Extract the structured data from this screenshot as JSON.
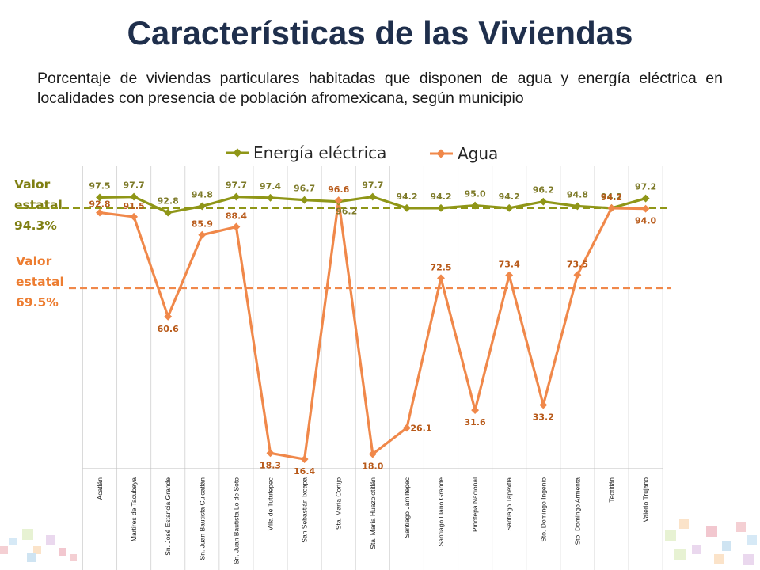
{
  "title": "Características de las Viviendas",
  "subtitle": "Porcentaje de viviendas particulares habitadas que disponen de agua y energía eléctrica en localidades con presencia de población afromexicana, según municipio",
  "state_values": {
    "energia_label": [
      "Valor",
      "estatal",
      "94.3%"
    ],
    "agua_label": [
      "Valor",
      "estatal",
      "69.5%"
    ],
    "energia_color": "#7f7f12",
    "agua_color": "#ed7d31"
  },
  "colors": {
    "energia": "#8f9617",
    "energia_text": "#7d7a28",
    "agua": "#f0884a",
    "agua_text": "#b85a1a",
    "title": "#1f2f4c"
  },
  "chart_data": {
    "type": "line",
    "categories": [
      "Acatlán",
      "Martires de Tacubaya",
      "Sn. José Estancia Grande",
      "Sn. Juan Bautista Cuicatlán",
      "Sn. Juan Bautista Lo de Soto",
      "Villa de Tututepec",
      "San Sebastián Ixcapa",
      "Sta. María Cortijo",
      "Sta. María Huazolotitlán",
      "Santiago Jamiltepec",
      "Santiago Llano Grande",
      "Pinotepa Nacional",
      "Santiago Tapextla",
      "Sto. Domingo Ingenio",
      "Sto. Domingo Armenta",
      "Teotitlán",
      "Valerio Trujano"
    ],
    "series": [
      {
        "name": "Energía eléctrica",
        "values": [
          97.5,
          97.7,
          92.8,
          94.8,
          97.7,
          97.4,
          96.7,
          96.2,
          97.7,
          94.2,
          94.2,
          95.0,
          94.2,
          96.2,
          94.8,
          94.2,
          97.2
        ]
      },
      {
        "name": "Agua",
        "values": [
          92.8,
          91.5,
          60.6,
          85.9,
          88.4,
          18.3,
          16.4,
          96.6,
          18.0,
          26.1,
          72.5,
          31.6,
          73.4,
          33.2,
          73.5,
          94.2,
          94.0
        ]
      }
    ],
    "reference_lines": [
      {
        "name": "Valor estatal Energía eléctrica",
        "value": 94.3
      },
      {
        "name": "Valor estatal Agua",
        "value": 69.5
      }
    ],
    "legend_position": "top"
  }
}
